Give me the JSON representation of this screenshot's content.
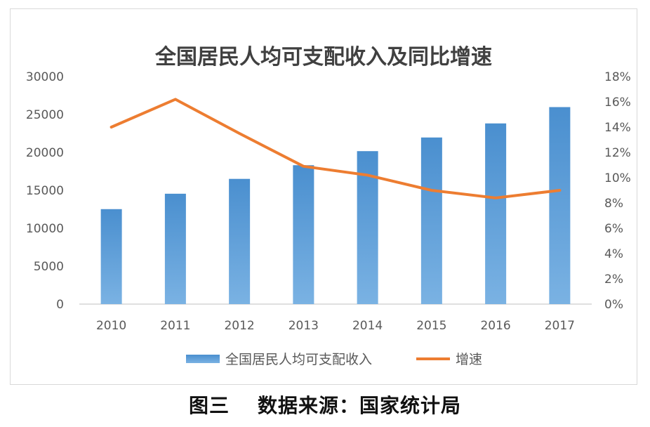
{
  "caption": {
    "figure_label": "图三",
    "source_text": "数据来源：国家统计局"
  },
  "colors": {
    "bar": "#4a8fcf",
    "bar_light": "#7ab2e3",
    "line": "#ed7d31",
    "axis_text": "#595959",
    "title_text": "#404040",
    "axis_line": "#bfbfbf"
  },
  "chart_data": {
    "type": "bar",
    "title": "全国居民人均可支配收入及同比增速",
    "categories": [
      "2010",
      "2011",
      "2012",
      "2013",
      "2014",
      "2015",
      "2016",
      "2017"
    ],
    "series": [
      {
        "name": "全国居民人均可支配收入",
        "type": "bar",
        "axis": "left",
        "values": [
          12520,
          14551,
          16510,
          18311,
          20167,
          21966,
          23821,
          25974
        ]
      },
      {
        "name": "增速",
        "type": "line",
        "axis": "right",
        "values": [
          14.0,
          16.2,
          13.5,
          10.9,
          10.2,
          9.0,
          8.4,
          9.0
        ]
      }
    ],
    "y_left": {
      "ylim": [
        0,
        30000
      ],
      "ticks": [
        "0",
        "5000",
        "10000",
        "15000",
        "20000",
        "25000",
        "30000"
      ]
    },
    "y_right": {
      "ylim": [
        0,
        18
      ],
      "ticks": [
        "0%",
        "2%",
        "4%",
        "6%",
        "8%",
        "10%",
        "12%",
        "14%",
        "16%",
        "18%"
      ]
    },
    "grid": false,
    "legend_position": "bottom"
  }
}
